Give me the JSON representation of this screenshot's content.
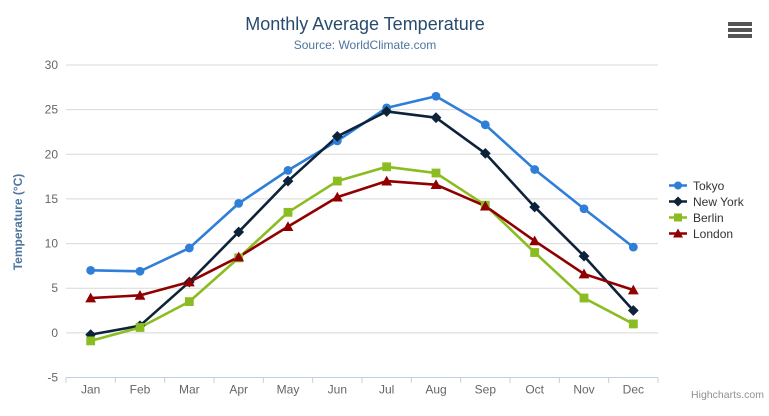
{
  "header": {
    "title": "Monthly Average Temperature",
    "subtitle": "Source: WorldClimate.com"
  },
  "credits": {
    "label": "Highcharts.com"
  },
  "context_menu": {
    "icon": "hamburger-menu"
  },
  "colors": {
    "title": "#274b6d",
    "subtitle": "#4d759e",
    "axis_labels": "#666666",
    "axis_line": "#c0d0e0",
    "grid_line": "#d8d8d8",
    "legend_text": "#333333",
    "credits_text": "#909090",
    "background": "#ffffff"
  },
  "chart_data": {
    "type": "line",
    "title": "Monthly Average Temperature",
    "subtitle": "Source: WorldClimate.com",
    "categories": [
      "Jan",
      "Feb",
      "Mar",
      "Apr",
      "May",
      "Jun",
      "Jul",
      "Aug",
      "Sep",
      "Oct",
      "Nov",
      "Dec"
    ],
    "xlabel": "",
    "ylabel": "Temperature (°C)",
    "yAxis": {
      "title": "Temperature (°C)",
      "min": -5,
      "max": 30,
      "tickInterval": 5,
      "ticks": [
        -5,
        0,
        5,
        10,
        15,
        20,
        25,
        30
      ]
    },
    "grid": true,
    "legend_position": "right",
    "series": [
      {
        "name": "Tokyo",
        "color": "#2f7ed8",
        "marker": "circle",
        "values": [
          7.0,
          6.9,
          9.5,
          14.5,
          18.2,
          21.5,
          25.2,
          26.5,
          23.3,
          18.3,
          13.9,
          9.6
        ]
      },
      {
        "name": "New York",
        "color": "#0d233a",
        "marker": "diamond",
        "values": [
          -0.2,
          0.8,
          5.7,
          11.3,
          17.0,
          22.0,
          24.8,
          24.1,
          20.1,
          14.1,
          8.6,
          2.5
        ]
      },
      {
        "name": "Berlin",
        "color": "#8bbc21",
        "marker": "square",
        "values": [
          -0.9,
          0.6,
          3.5,
          8.4,
          13.5,
          17.0,
          18.6,
          17.9,
          14.3,
          9.0,
          3.9,
          1.0
        ]
      },
      {
        "name": "London",
        "color": "#910000",
        "marker": "triangle",
        "values": [
          3.9,
          4.2,
          5.7,
          8.5,
          11.9,
          15.2,
          17.0,
          16.6,
          14.2,
          10.3,
          6.6,
          4.8
        ]
      }
    ]
  }
}
